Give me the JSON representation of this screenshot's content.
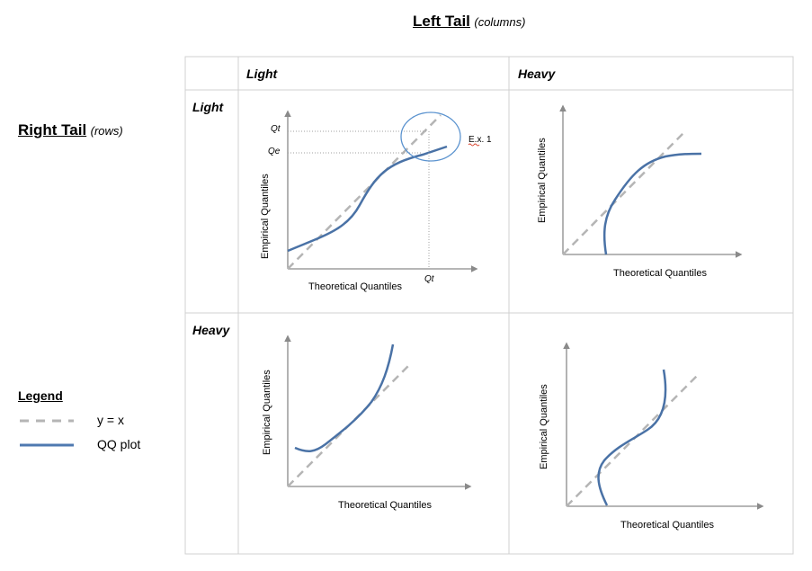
{
  "header": {
    "title": "Left Tail",
    "subtitle": "(columns)"
  },
  "side": {
    "title": "Right Tail",
    "subtitle": "(rows)"
  },
  "table": {
    "col_headers": [
      "Light",
      "Heavy"
    ],
    "row_headers": [
      "Light",
      "Heavy"
    ]
  },
  "axis": {
    "x_label": "Theoretical Quantiles",
    "y_label": "Empirical Quantiles"
  },
  "annotations": {
    "qt_y": "Qt",
    "qe": "Qe",
    "qt_x": "Qt",
    "example": "E.x. 1"
  },
  "legend": {
    "title": "Legend",
    "items": [
      {
        "label": "y = x",
        "style": "dashed",
        "color": "#b5b5b5"
      },
      {
        "label": "QQ plot",
        "style": "solid",
        "color": "#4f79b0"
      }
    ]
  },
  "colors": {
    "qq_line": "#4a72a6",
    "ref_line": "#b5b5b5",
    "axis": "#8a8a8a",
    "grid": "#d0d0d0",
    "circle": "#5b93cf"
  }
}
